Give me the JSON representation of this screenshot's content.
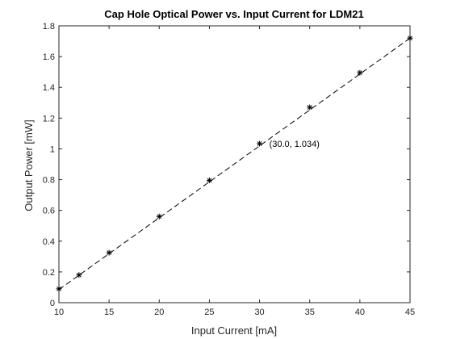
{
  "chart_data": {
    "type": "line",
    "title": "Cap Hole Optical Power vs. Input Current for LDM21",
    "xlabel": "Input Current [mA]",
    "ylabel": "Output Power [mW]",
    "xlim": [
      10,
      45
    ],
    "ylim": [
      0,
      1.8
    ],
    "xticks": [
      "10",
      "15",
      "20",
      "25",
      "30",
      "35",
      "40",
      "45"
    ],
    "yticks": [
      "0",
      "0.2",
      "0.4",
      "0.6",
      "0.8",
      "1",
      "1.2",
      "1.4",
      "1.6",
      "1.8"
    ],
    "grid": false,
    "series": [
      {
        "marker": "asterisk",
        "x": [
          10,
          12,
          15,
          20,
          25,
          30,
          35,
          40,
          45
        ],
        "y": [
          0.09,
          0.18,
          0.325,
          0.56,
          0.795,
          1.034,
          1.27,
          1.495,
          1.72
        ]
      },
      {
        "style": "dashed",
        "x": [
          10,
          45
        ],
        "y": [
          0.085,
          1.72
        ]
      }
    ],
    "annotations": [
      {
        "text": "(30.0, 1.034)",
        "x": 30,
        "y": 1.034
      }
    ],
    "colors": {
      "data": "#000000",
      "axes": "#262626"
    }
  }
}
